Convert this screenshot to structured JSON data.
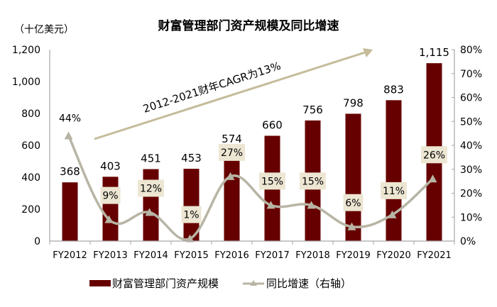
{
  "chart_data": {
    "type": "bar+line",
    "title": "财富管理部门资产规模及同比增速",
    "ylabel_left": "（十亿美元）",
    "ylabel_right": "",
    "categories": [
      "FY2012",
      "FY2013",
      "FY2014",
      "FY2015",
      "FY2016",
      "FY2017",
      "FY2018",
      "FY2019",
      "FY2020",
      "FY2021"
    ],
    "series": [
      {
        "name": "财富管理部门资产规模",
        "type": "bar",
        "axis": "left",
        "color": "#660000",
        "values": [
          368,
          403,
          451,
          453,
          574,
          660,
          756,
          798,
          883,
          1115
        ],
        "labels": [
          "368",
          "403",
          "451",
          "453",
          "574",
          "660",
          "756",
          "798",
          "883",
          "1,115"
        ]
      },
      {
        "name": "同比增速（右轴）",
        "type": "line",
        "axis": "right",
        "color": "#b8b5a5",
        "marker": "triangle",
        "values": [
          44,
          9,
          12,
          1,
          27,
          15,
          15,
          6,
          11,
          26
        ],
        "labels": [
          "44%",
          "9%",
          "12%",
          "1%",
          "27%",
          "15%",
          "15%",
          "6%",
          "11%",
          "26%"
        ]
      }
    ],
    "ylim_left": [
      0,
      1200
    ],
    "ylim_right": [
      0,
      80
    ],
    "left_ticks": [
      "0",
      "200",
      "400",
      "600",
      "800",
      "1,000",
      "1,200"
    ],
    "right_ticks": [
      "0%",
      "10%",
      "20%",
      "30%",
      "40%",
      "50%",
      "60%",
      "70%",
      "80%"
    ],
    "annotation": {
      "text": "2012-2021财年CAGR为13%",
      "type": "arrow",
      "color": "#c4bc9a"
    },
    "legend_position": "bottom",
    "grid": false
  }
}
